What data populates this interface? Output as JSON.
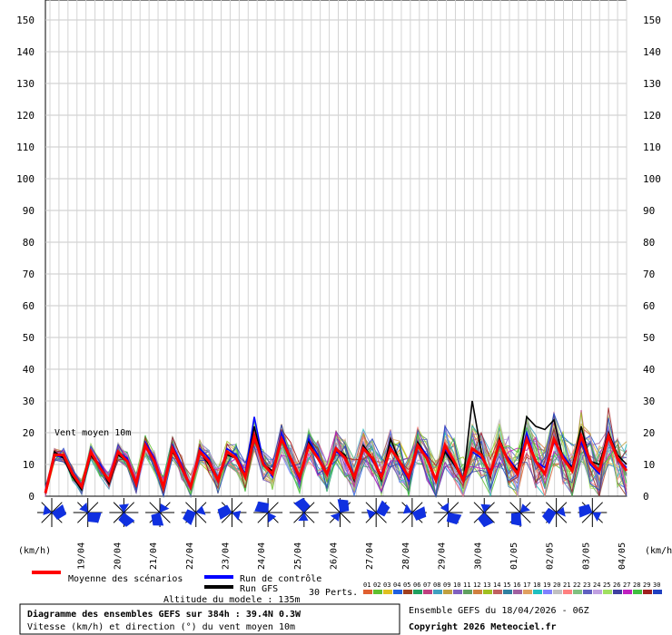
{
  "chart_data": {
    "type": "line",
    "title": "Diagramme des ensembles GEFS sur 384h : 39.4N 0.3W",
    "subtitle": "Vitesse (km/h) et direction (°) du vent moyen 10m",
    "ylabel_left": "(km/h)",
    "ylabel_right": "(km/h)",
    "annotation": "Vent moyen 10m",
    "altitude": "Altitude du modele : 135m",
    "run_info": "Ensemble GEFS du 18/04/2026 - 06Z",
    "copyright": "Copyright 2026 Meteociel.fr",
    "ylim": [
      0,
      150
    ],
    "yticks": [
      "0",
      "10",
      "20",
      "30",
      "40",
      "50",
      "60",
      "70",
      "80",
      "90",
      "100",
      "110",
      "120",
      "130",
      "140",
      "150"
    ],
    "xticks": [
      "19/04",
      "20/04",
      "21/04",
      "22/04",
      "23/04",
      "24/04",
      "25/04",
      "26/04",
      "27/04",
      "28/04",
      "29/04",
      "30/04",
      "01/05",
      "02/05",
      "03/05",
      "04/05"
    ],
    "grid": true,
    "legend": {
      "mean_label": "Moyenne des scénarios",
      "control_label": "Run de contrôle",
      "gfs_label": "Run GFS",
      "perts_label": "30 Perts.",
      "pert_numbers": [
        "01",
        "02",
        "03",
        "04",
        "05",
        "06",
        "07",
        "08",
        "09",
        "10",
        "11",
        "12",
        "13",
        "14",
        "15",
        "16",
        "17",
        "18",
        "19",
        "20",
        "21",
        "22",
        "23",
        "24",
        "25",
        "26",
        "27",
        "28",
        "29",
        "30"
      ],
      "pert_colors": [
        "#e06030",
        "#60c030",
        "#e0c020",
        "#2060e0",
        "#a04020",
        "#20a060",
        "#c04080",
        "#40a0c0",
        "#c0a040",
        "#8060c0",
        "#60a060",
        "#d08040",
        "#a0c020",
        "#c06060",
        "#3080a0",
        "#a060a0",
        "#e0a060",
        "#20c0c0",
        "#8080ff",
        "#c0c0c0",
        "#ff8080",
        "#80c080",
        "#6060c0",
        "#c0a0e0",
        "#a0e060",
        "#4040a0",
        "#c020c0",
        "#40c040",
        "#a02020",
        "#2040c0"
      ]
    },
    "series": [
      {
        "name": "Moyenne des scénarios",
        "color": "#ff0000",
        "values": [
          1,
          13,
          13,
          7,
          3,
          14,
          9,
          5,
          14,
          11,
          4,
          16,
          11,
          3,
          15,
          9,
          3,
          14,
          11,
          5,
          14,
          12,
          6,
          19,
          10,
          7,
          18,
          12,
          6,
          16,
          12,
          7,
          15,
          12,
          6,
          15,
          12,
          6,
          15,
          11,
          6,
          16,
          12,
          5,
          16,
          11,
          5,
          15,
          13,
          7,
          17,
          11,
          7,
          18,
          11,
          7,
          18,
          12,
          8,
          19,
          11,
          8,
          19,
          12,
          8
        ]
      },
      {
        "name": "Run de contrôle",
        "color": "#0000ff",
        "values": [
          2,
          13,
          12,
          6,
          3,
          13,
          10,
          5,
          14,
          12,
          4,
          17,
          12,
          3,
          16,
          10,
          3,
          15,
          12,
          5,
          15,
          13,
          7,
          25,
          11,
          6,
          20,
          12,
          5,
          18,
          13,
          7,
          14,
          12,
          6,
          16,
          11,
          7,
          16,
          10,
          5,
          17,
          13,
          5,
          15,
          10,
          6,
          14,
          12,
          8,
          16,
          12,
          8,
          20,
          11,
          9,
          17,
          13,
          9,
          17,
          10,
          7,
          20,
          12,
          9
        ]
      },
      {
        "name": "Run GFS",
        "color": "#000000",
        "values": [
          1,
          14,
          12,
          6,
          2,
          13,
          9,
          4,
          13,
          11,
          4,
          16,
          11,
          3,
          14,
          9,
          3,
          14,
          10,
          5,
          13,
          12,
          6,
          22,
          10,
          8,
          18,
          12,
          6,
          17,
          12,
          7,
          15,
          13,
          5,
          16,
          12,
          5,
          18,
          11,
          6,
          17,
          12,
          5,
          14,
          10,
          5,
          30,
          14,
          6,
          18,
          11,
          8,
          25,
          22,
          21,
          24,
          12,
          9,
          22,
          11,
          10,
          20,
          13,
          10
        ]
      }
    ],
    "wind_roses": 16
  }
}
